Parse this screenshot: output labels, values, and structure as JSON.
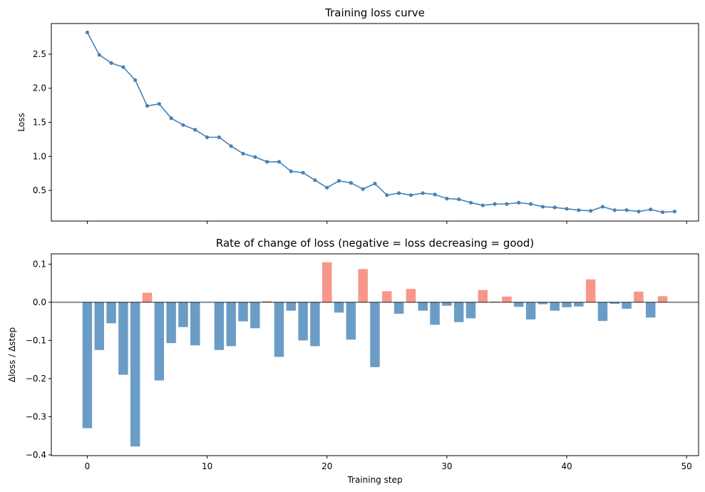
{
  "chart_data": [
    {
      "type": "line",
      "title": "Training loss curve",
      "xlabel": "",
      "ylabel": "Loss",
      "xlim": [
        -3,
        51
      ],
      "ylim": [
        0.05,
        2.95
      ],
      "x_ticks": [
        0,
        10,
        20,
        30,
        40,
        50
      ],
      "show_x_tick_labels": false,
      "y_ticks": [
        0.5,
        1.0,
        1.5,
        2.0,
        2.5
      ],
      "y_tick_labels": [
        "0.5",
        "1.0",
        "1.5",
        "2.0",
        "2.5"
      ],
      "grid": false,
      "color": "#4682b4",
      "x": [
        0,
        1,
        2,
        3,
        4,
        5,
        6,
        7,
        8,
        9,
        10,
        11,
        12,
        13,
        14,
        15,
        16,
        17,
        18,
        19,
        20,
        21,
        22,
        23,
        24,
        25,
        26,
        27,
        28,
        29,
        30,
        31,
        32,
        33,
        34,
        35,
        36,
        37,
        38,
        39,
        40,
        41,
        42,
        43,
        44,
        45,
        46,
        47,
        48,
        49
      ],
      "values": [
        2.82,
        2.49,
        2.37,
        2.31,
        2.12,
        1.74,
        1.77,
        1.56,
        1.46,
        1.39,
        1.28,
        1.28,
        1.15,
        1.04,
        0.99,
        0.92,
        0.92,
        0.78,
        0.76,
        0.65,
        0.54,
        0.64,
        0.61,
        0.52,
        0.6,
        0.43,
        0.46,
        0.43,
        0.46,
        0.44,
        0.38,
        0.37,
        0.32,
        0.28,
        0.3,
        0.3,
        0.32,
        0.3,
        0.26,
        0.25,
        0.23,
        0.21,
        0.2,
        0.26,
        0.21,
        0.21,
        0.19,
        0.22,
        0.18,
        0.19
      ]
    },
    {
      "type": "bar",
      "title": "Rate of change of loss (negative = loss decreasing = good)",
      "xlabel": "Training step",
      "ylabel": "Δloss / Δstep",
      "xlim": [
        -3,
        51
      ],
      "ylim": [
        -0.402,
        0.127
      ],
      "x_ticks": [
        0,
        10,
        20,
        30,
        40,
        50
      ],
      "x_tick_labels": [
        "0",
        "10",
        "20",
        "30",
        "40",
        "50"
      ],
      "y_ticks": [
        -0.4,
        -0.3,
        -0.2,
        -0.1,
        0.0,
        0.1
      ],
      "y_tick_labels": [
        "−0.4",
        "−0.3",
        "−0.2",
        "−0.1",
        "0.0",
        "0.1"
      ],
      "zero_line": true,
      "grid": false,
      "negative_color": "#6b9cc6",
      "positive_color": "#f8968a",
      "x": [
        0,
        1,
        2,
        3,
        4,
        5,
        6,
        7,
        8,
        9,
        10,
        11,
        12,
        13,
        14,
        15,
        16,
        17,
        18,
        19,
        20,
        21,
        22,
        23,
        24,
        25,
        26,
        27,
        28,
        29,
        30,
        31,
        32,
        33,
        34,
        35,
        36,
        37,
        38,
        39,
        40,
        41,
        42,
        43,
        44,
        45,
        46,
        47,
        48,
        49
      ],
      "values": [
        -0.33,
        -0.125,
        -0.055,
        -0.19,
        -0.378,
        0.025,
        -0.205,
        -0.107,
        -0.065,
        -0.113,
        0.0,
        -0.125,
        -0.115,
        -0.05,
        -0.068,
        0.003,
        -0.143,
        -0.022,
        -0.1,
        -0.115,
        0.105,
        -0.027,
        -0.098,
        0.087,
        -0.17,
        0.029,
        -0.03,
        0.035,
        -0.022,
        -0.059,
        -0.009,
        -0.052,
        -0.042,
        0.032,
        0.002,
        0.015,
        -0.012,
        -0.045,
        -0.005,
        -0.022,
        -0.013,
        -0.011,
        0.06,
        -0.049,
        -0.004,
        -0.017,
        0.028,
        -0.04,
        0.016,
        0.0
      ]
    }
  ]
}
